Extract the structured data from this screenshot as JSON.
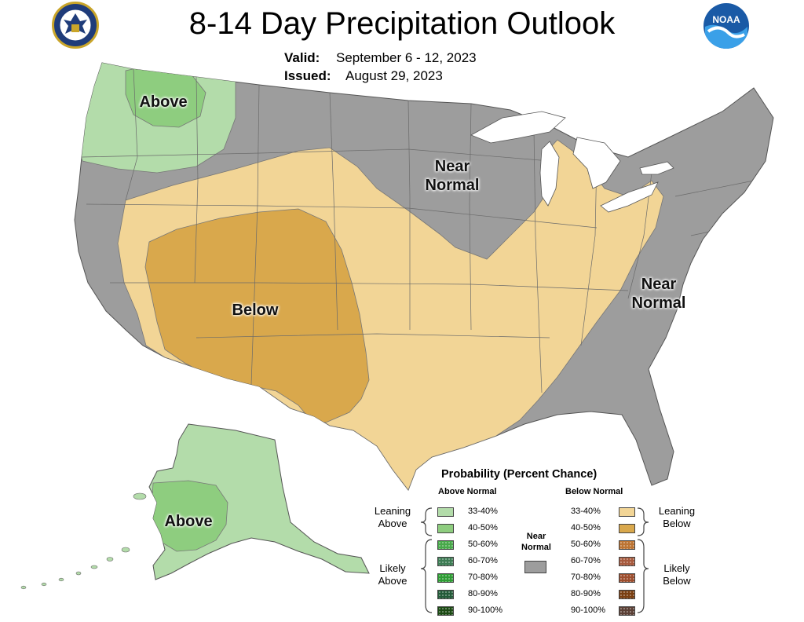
{
  "header": {
    "title": "8-14 Day Precipitation Outlook",
    "valid_label": "Valid:",
    "valid_value": "September 6 - 12, 2023",
    "issued_label": "Issued:",
    "issued_value": "August 29, 2023"
  },
  "logos": {
    "left": {
      "icon": "department-of-commerce-seal-icon"
    },
    "right": {
      "icon": "noaa-logo-icon",
      "text": "NOAA"
    }
  },
  "regions": {
    "northwest": "Above",
    "midwest": "Near Normal",
    "east": "Near Normal",
    "southwest": "Below",
    "alaska": "Above"
  },
  "colors": {
    "near_normal": "#9d9d9d",
    "above_33_40": "#b3dcaa",
    "above_40_50": "#8ecd7f",
    "below_33_40": "#f2d596",
    "below_40_50": "#d9a84c",
    "water": "#ffffff",
    "border": "#555555"
  },
  "legend": {
    "title": "Probability (Percent Chance)",
    "above_header": "Above Normal",
    "below_header": "Below Normal",
    "near_normal_label": "Near Normal",
    "near_normal_color": "#9d9d9d",
    "leaning_above": "Leaning Above",
    "likely_above": "Likely Above",
    "leaning_below": "Leaning Below",
    "likely_below": "Likely Below",
    "above": [
      {
        "label": "33-40%",
        "color": "#b3dcaa"
      },
      {
        "label": "40-50%",
        "color": "#8ecd7f"
      },
      {
        "label": "50-60%",
        "color": "#48a84a"
      },
      {
        "label": "60-70%",
        "color": "#3d7c54"
      },
      {
        "label": "70-80%",
        "color": "#2e9b34"
      },
      {
        "label": "80-90%",
        "color": "#245b39"
      },
      {
        "label": "90-100%",
        "color": "#1c4a14"
      }
    ],
    "below": [
      {
        "label": "33-40%",
        "color": "#f2d596"
      },
      {
        "label": "40-50%",
        "color": "#d9a84c"
      },
      {
        "label": "50-60%",
        "color": "#bc7433"
      },
      {
        "label": "60-70%",
        "color": "#a75a3e"
      },
      {
        "label": "70-80%",
        "color": "#9c4e2e"
      },
      {
        "label": "80-90%",
        "color": "#7a3f11"
      },
      {
        "label": "90-100%",
        "color": "#5b4036"
      }
    ]
  }
}
